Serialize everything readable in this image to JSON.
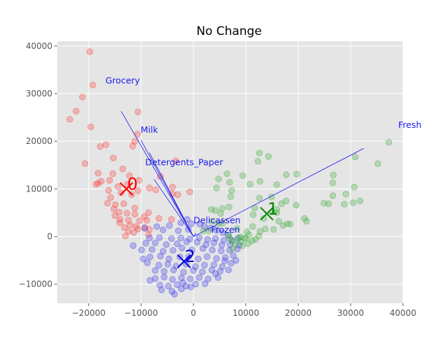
{
  "chart_data": {
    "type": "scatter",
    "title": "No Change",
    "xlabel": "",
    "ylabel": "",
    "xlim": [
      -26000,
      40000
    ],
    "ylim": [
      -14000,
      41000
    ],
    "x_ticks": [
      -20000,
      -10000,
      0,
      10000,
      20000,
      30000,
      40000
    ],
    "y_ticks": [
      -10000,
      0,
      10000,
      20000,
      30000,
      40000
    ],
    "x_tick_labels": [
      "−20000",
      "−10000",
      "0",
      "10000",
      "20000",
      "30000",
      "40000"
    ],
    "y_tick_labels": [
      "−10000",
      "0",
      "10000",
      "20000",
      "30000",
      "40000"
    ],
    "grid": true,
    "background": "#e5e5e5",
    "feature_color": "#1a1aee",
    "series": [
      {
        "color": "#ff3333",
        "points": [
          [
            -19800,
            38800
          ],
          [
            -19200,
            31800
          ],
          [
            -21200,
            29300
          ],
          [
            -22400,
            26300
          ],
          [
            -23600,
            24600
          ],
          [
            -19600,
            23000
          ],
          [
            -10600,
            26200
          ],
          [
            -11200,
            20000
          ],
          [
            -10700,
            21500
          ],
          [
            -11600,
            19000
          ],
          [
            -17800,
            18900
          ],
          [
            -16700,
            19300
          ],
          [
            -15300,
            16500
          ],
          [
            -20700,
            15300
          ],
          [
            -13500,
            14200
          ],
          [
            -15400,
            13200
          ],
          [
            -18200,
            13300
          ],
          [
            -17600,
            11600
          ],
          [
            -18200,
            11200
          ],
          [
            -18600,
            11000
          ],
          [
            -16000,
            11800
          ],
          [
            -12200,
            12800
          ],
          [
            -10400,
            11800
          ],
          [
            -12600,
            11000
          ],
          [
            -14400,
            10500
          ],
          [
            -16200,
            9700
          ],
          [
            -13800,
            9200
          ],
          [
            -10600,
            9600
          ],
          [
            -8400,
            10200
          ],
          [
            -7200,
            9800
          ],
          [
            -11800,
            8800
          ],
          [
            -15800,
            8200
          ],
          [
            -16400,
            7000
          ],
          [
            -14900,
            6700
          ],
          [
            -13300,
            6900
          ],
          [
            -11200,
            6000
          ],
          [
            -15200,
            5800
          ],
          [
            -14200,
            5100
          ],
          [
            -12700,
            4900
          ],
          [
            -11200,
            4700
          ],
          [
            -9400,
            4200
          ],
          [
            -8600,
            5000
          ],
          [
            -15000,
            4400
          ],
          [
            -14000,
            3600
          ],
          [
            -12400,
            3400
          ],
          [
            -10300,
            3300
          ],
          [
            -8900,
            3400
          ],
          [
            -14100,
            2900
          ],
          [
            -12100,
            2400
          ],
          [
            -11000,
            2100
          ],
          [
            -13200,
            1900
          ],
          [
            -10600,
            1600
          ],
          [
            -9300,
            1900
          ],
          [
            -8400,
            1500
          ],
          [
            -12400,
            1100
          ],
          [
            -11400,
            900
          ],
          [
            -13000,
            100
          ],
          [
            -8600,
            400
          ],
          [
            -6600,
            3800
          ],
          [
            -4200,
            3600
          ],
          [
            -4000,
            9000
          ],
          [
            -6300,
            12600
          ],
          [
            -4000,
            10400
          ],
          [
            -3000,
            8800
          ],
          [
            -700,
            9400
          ],
          [
            -3400,
            15900
          ]
        ]
      },
      {
        "color": "#3333ee",
        "points": [
          [
            -1200,
            3600
          ],
          [
            -2400,
            2900
          ],
          [
            -4600,
            2300
          ],
          [
            -7000,
            2100
          ],
          [
            -9300,
            1700
          ],
          [
            -5800,
            1400
          ],
          [
            -2900,
            1200
          ],
          [
            -1000,
            1500
          ],
          [
            -400,
            2700
          ],
          [
            1200,
            2600
          ],
          [
            2100,
            2100
          ],
          [
            3200,
            1800
          ],
          [
            4400,
            1300
          ],
          [
            5600,
            800
          ],
          [
            6600,
            300
          ],
          [
            -8400,
            -300
          ],
          [
            -6500,
            -200
          ],
          [
            -4200,
            -400
          ],
          [
            -2400,
            -300
          ],
          [
            -700,
            -500
          ],
          [
            1100,
            -200
          ],
          [
            2700,
            -600
          ],
          [
            4200,
            -400
          ],
          [
            5800,
            -800
          ],
          [
            7300,
            -700
          ],
          [
            8600,
            -300
          ],
          [
            -11500,
            -1900
          ],
          [
            -9100,
            -1400
          ],
          [
            -7300,
            -1300
          ],
          [
            -5200,
            -1700
          ],
          [
            -3100,
            -1500
          ],
          [
            -1300,
            -1100
          ],
          [
            700,
            -1200
          ],
          [
            2400,
            -1700
          ],
          [
            3900,
            -1300
          ],
          [
            5400,
            -1800
          ],
          [
            7000,
            -1700
          ],
          [
            8700,
            -1800
          ],
          [
            -9900,
            -2800
          ],
          [
            -7900,
            -2700
          ],
          [
            -5800,
            -3100
          ],
          [
            -3900,
            -2900
          ],
          [
            -2200,
            -2400
          ],
          [
            -300,
            -2800
          ],
          [
            1800,
            -2500
          ],
          [
            3600,
            -2800
          ],
          [
            5300,
            -3000
          ],
          [
            6900,
            -2900
          ],
          [
            8400,
            -2600
          ],
          [
            -9600,
            -4700
          ],
          [
            -8300,
            -4300
          ],
          [
            -6300,
            -4100
          ],
          [
            -4700,
            -4700
          ],
          [
            -2600,
            -4300
          ],
          [
            -900,
            -4200
          ],
          [
            900,
            -4700
          ],
          [
            2600,
            -4200
          ],
          [
            4400,
            -4600
          ],
          [
            6100,
            -4400
          ],
          [
            7600,
            -4000
          ],
          [
            -8800,
            -5500
          ],
          [
            -6600,
            -6000
          ],
          [
            -4900,
            -5800
          ],
          [
            -3300,
            -6200
          ],
          [
            -1400,
            -5800
          ],
          [
            400,
            -6300
          ],
          [
            2100,
            -6000
          ],
          [
            3900,
            -5900
          ],
          [
            5500,
            -6300
          ],
          [
            7200,
            -5600
          ],
          [
            -7300,
            -7100
          ],
          [
            -5600,
            -7300
          ],
          [
            -3800,
            -7000
          ],
          [
            -1900,
            -7500
          ],
          [
            0,
            -7100
          ],
          [
            1700,
            -7400
          ],
          [
            3500,
            -7000
          ],
          [
            5100,
            -7300
          ],
          [
            6700,
            -7000
          ],
          [
            -7300,
            -8800
          ],
          [
            -5600,
            -8500
          ],
          [
            -4000,
            -9000
          ],
          [
            -2300,
            -8700
          ],
          [
            -600,
            -8900
          ],
          [
            1100,
            -8600
          ],
          [
            2800,
            -8900
          ],
          [
            4700,
            -8600
          ],
          [
            -6400,
            -10200
          ],
          [
            -4800,
            -10400
          ],
          [
            -3100,
            -10100
          ],
          [
            -1400,
            -10400
          ],
          [
            400,
            -10000
          ],
          [
            2200,
            -9900
          ],
          [
            -6100,
            -11200
          ],
          [
            -4100,
            -11500
          ],
          [
            -2300,
            -11000
          ],
          [
            -500,
            -10600
          ],
          [
            -3600,
            -12100
          ],
          [
            -2000,
            -9700
          ],
          [
            -8300,
            -9200
          ],
          [
            4200,
            -7800
          ],
          [
            6000,
            -5100
          ],
          [
            8100,
            -5000
          ]
        ]
      },
      {
        "color": "#33aa33",
        "points": [
          [
            37300,
            19800
          ],
          [
            30900,
            16700
          ],
          [
            35200,
            15300
          ],
          [
            26700,
            12900
          ],
          [
            26600,
            11300
          ],
          [
            30700,
            10400
          ],
          [
            29100,
            8900
          ],
          [
            26600,
            8600
          ],
          [
            31800,
            7500
          ],
          [
            30500,
            7100
          ],
          [
            25800,
            6900
          ],
          [
            24900,
            7000
          ],
          [
            28800,
            6800
          ],
          [
            21200,
            3800
          ],
          [
            21600,
            3200
          ],
          [
            15900,
            10900
          ],
          [
            17700,
            13000
          ],
          [
            12600,
            17500
          ],
          [
            14300,
            16800
          ],
          [
            12300,
            15800
          ],
          [
            19700,
            13100
          ],
          [
            9400,
            12800
          ],
          [
            10800,
            11000
          ],
          [
            12700,
            11600
          ],
          [
            6400,
            13200
          ],
          [
            4800,
            12100
          ],
          [
            6900,
            11400
          ],
          [
            4400,
            10200
          ],
          [
            7300,
            9700
          ],
          [
            7100,
            8400
          ],
          [
            14900,
            8300
          ],
          [
            17700,
            7500
          ],
          [
            16800,
            6900
          ],
          [
            19600,
            6600
          ],
          [
            12600,
            8100
          ],
          [
            11700,
            6000
          ],
          [
            6800,
            6200
          ],
          [
            5500,
            5900
          ],
          [
            4200,
            5500
          ],
          [
            3400,
            5700
          ],
          [
            15900,
            5700
          ],
          [
            15000,
            5200
          ],
          [
            15900,
            5000
          ],
          [
            11400,
            4600
          ],
          [
            13400,
            3800
          ],
          [
            16300,
            3200
          ],
          [
            17900,
            2700
          ],
          [
            18500,
            2600
          ],
          [
            17100,
            2300
          ],
          [
            15300,
            1500
          ],
          [
            13700,
            1600
          ],
          [
            12700,
            1100
          ],
          [
            11300,
            2100
          ],
          [
            10200,
            1000
          ],
          [
            10600,
            400
          ],
          [
            12500,
            100
          ],
          [
            9700,
            -300
          ],
          [
            9000,
            -100
          ],
          [
            8400,
            -500
          ],
          [
            9000,
            -1100
          ],
          [
            8000,
            -1600
          ],
          [
            9400,
            -1900
          ],
          [
            10400,
            -1500
          ],
          [
            11200,
            -900
          ],
          [
            11800,
            -600
          ],
          [
            10000,
            -400
          ],
          [
            7400,
            -1000
          ],
          [
            6900,
            -400
          ],
          [
            7500,
            -2600
          ],
          [
            6700,
            300
          ],
          [
            3600,
            3200
          ],
          [
            5200,
            4800
          ],
          [
            4800,
            2700
          ],
          [
            1900,
            1200
          ],
          [
            2900,
            1200
          ],
          [
            5500,
            2800
          ],
          [
            8300,
            1700
          ]
        ]
      }
    ],
    "centroids": [
      {
        "label": "0",
        "x": -12800,
        "y": 10000,
        "color": "#ff0000"
      },
      {
        "label": "1",
        "x": 14000,
        "y": 4800,
        "color": "#008800"
      },
      {
        "label": "2",
        "x": -1800,
        "y": -5200,
        "color": "#0000dd"
      }
    ],
    "features": [
      {
        "name": "Grocery",
        "end": [
          -13800,
          26300
        ],
        "label_pos": [
          -16800,
          32100
        ]
      },
      {
        "name": "Milk",
        "end": [
          -10000,
          20200
        ],
        "label_pos": [
          -10100,
          21800
        ]
      },
      {
        "name": "Detergents_Paper",
        "end": [
          -8400,
          17600
        ],
        "label_pos": [
          -9200,
          15000
        ]
      },
      {
        "name": "Fresh",
        "end": [
          32500,
          18500
        ],
        "label_pos": [
          39100,
          22800
        ]
      },
      {
        "name": "Delicassen",
        "end": [
          -7500,
          12000
        ],
        "label_pos": [
          0,
          2800
        ]
      },
      {
        "name": "Frozen",
        "end": [
          500,
          700
        ],
        "label_pos": [
          3400,
          800
        ]
      }
    ]
  }
}
